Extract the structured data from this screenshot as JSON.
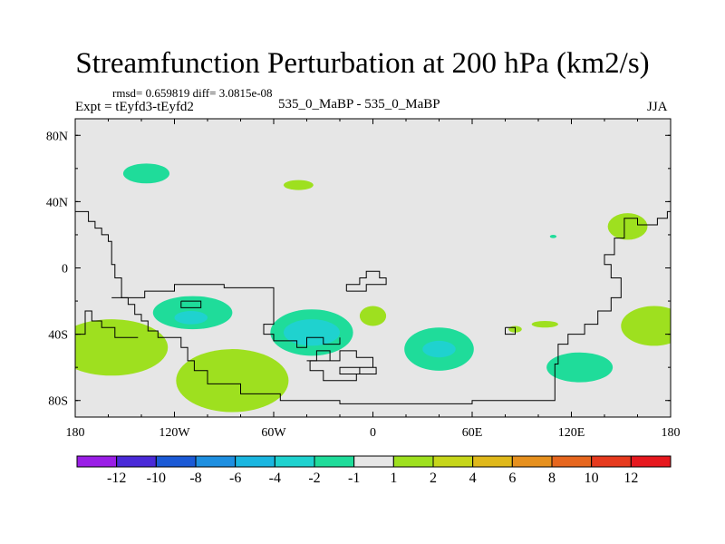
{
  "header": {
    "title": "Streamfunction Perturbation at 200 hPa (km2/s)",
    "stats": "rmsd= 0.659819 diff= 3.0815e-08",
    "experiment": "Expt = tEyfd3-tEyfd2",
    "runs": "535_0_MaBP - 535_0_MaBP",
    "season": "JJA"
  },
  "chart_data": {
    "type": "heatmap",
    "subtype": "filled-contour-map",
    "title": "Streamfunction Perturbation at 200 hPa (km2/s)",
    "units": "km2/s",
    "level": "200 hPa",
    "season": "JJA",
    "xlim": [
      -180,
      180
    ],
    "ylim": [
      -90,
      90
    ],
    "x_ticks": [
      -180,
      -120,
      -60,
      0,
      60,
      120,
      180
    ],
    "x_tick_labels": [
      "180",
      "120W",
      "60W",
      "0",
      "60E",
      "120E",
      "180"
    ],
    "y_ticks": [
      80,
      40,
      0,
      -40,
      -80
    ],
    "y_tick_labels": [
      "80N",
      "40N",
      "0",
      "40S",
      "80S"
    ],
    "colorbar": {
      "labels": [
        "-12",
        "-10",
        "-8",
        "-6",
        "-4",
        "-2",
        "-1",
        "1",
        "2",
        "4",
        "6",
        "8",
        "10",
        "12"
      ],
      "colors": [
        "#9a1ee6",
        "#4a2ad8",
        "#1b5ad6",
        "#1e8fe0",
        "#1ab6e0",
        "#1fd2cf",
        "#1fdc9a",
        "#e6e6e6",
        "#9ee01f",
        "#c6d61a",
        "#dfb81a",
        "#e6901e",
        "#e6661e",
        "#e63a1e",
        "#e6181e"
      ]
    },
    "background_color": "#e6e6e6",
    "features": [
      {
        "lon": -137,
        "lat": 57,
        "rx": 14,
        "ry": 6,
        "category": "-1"
      },
      {
        "lon": -45,
        "lat": 50,
        "rx": 9,
        "ry": 3,
        "category": "1"
      },
      {
        "lon": 154,
        "lat": 25,
        "rx": 12,
        "ry": 8,
        "category": "1"
      },
      {
        "lon": 109,
        "lat": 19,
        "rx": 2,
        "ry": 1,
        "category": "-1"
      },
      {
        "lon": -158,
        "lat": -48,
        "rx": 34,
        "ry": 17,
        "category": "1"
      },
      {
        "lon": -109,
        "lat": -27,
        "rx": 24,
        "ry": 10,
        "category": "-1"
      },
      {
        "lon": -110,
        "lat": -30,
        "rx": 10,
        "ry": 4,
        "category": "-2"
      },
      {
        "lon": -37,
        "lat": -39,
        "rx": 25,
        "ry": 14,
        "category": "-1"
      },
      {
        "lon": -37,
        "lat": -39,
        "rx": 17,
        "ry": 8,
        "category": "-2"
      },
      {
        "lon": 0,
        "lat": -29,
        "rx": 8,
        "ry": 6,
        "category": "1"
      },
      {
        "lon": 40,
        "lat": -49,
        "rx": 21,
        "ry": 13,
        "category": "-1"
      },
      {
        "lon": 40,
        "lat": -49,
        "rx": 10,
        "ry": 5,
        "category": "-2"
      },
      {
        "lon": -85,
        "lat": -68,
        "rx": 34,
        "ry": 19,
        "category": "1"
      },
      {
        "lon": 86,
        "lat": -37,
        "rx": 4,
        "ry": 2,
        "category": "1"
      },
      {
        "lon": 104,
        "lat": -34,
        "rx": 8,
        "ry": 2,
        "category": "1"
      },
      {
        "lon": 125,
        "lat": -60,
        "rx": 20,
        "ry": 9,
        "category": "-1"
      },
      {
        "lon": 170,
        "lat": -35,
        "rx": 20,
        "ry": 12,
        "category": "1"
      }
    ],
    "coastline": [
      [
        [
          -180,
          34
        ],
        [
          -172,
          34
        ],
        [
          -172,
          28
        ],
        [
          -168,
          28
        ],
        [
          -168,
          24
        ],
        [
          -164,
          24
        ],
        [
          -164,
          20
        ],
        [
          -160,
          20
        ],
        [
          -160,
          16
        ],
        [
          -158,
          16
        ],
        [
          -158,
          2
        ],
        [
          -156,
          2
        ],
        [
          -156,
          -6
        ],
        [
          -152,
          -6
        ],
        [
          -152,
          -18
        ],
        [
          -148,
          -18
        ],
        [
          -148,
          -22
        ],
        [
          -144,
          -22
        ],
        [
          -144,
          -28
        ],
        [
          -140,
          -28
        ],
        [
          -140,
          -32
        ],
        [
          -136,
          -32
        ],
        [
          -136,
          -38
        ],
        [
          -130,
          -38
        ],
        [
          -130,
          -42
        ],
        [
          -116,
          -42
        ],
        [
          -116,
          -48
        ],
        [
          -112,
          -48
        ],
        [
          -112,
          -56
        ],
        [
          -108,
          -56
        ],
        [
          -108,
          -62
        ],
        [
          -100,
          -62
        ],
        [
          -100,
          -70
        ],
        [
          -80,
          -70
        ],
        [
          -80,
          -76
        ],
        [
          -56,
          -76
        ],
        [
          -56,
          -80
        ],
        [
          -20,
          -80
        ],
        [
          -20,
          -82
        ],
        [
          60,
          -82
        ],
        [
          60,
          -80
        ],
        [
          110,
          -80
        ],
        [
          110,
          -58
        ],
        [
          112,
          -58
        ],
        [
          112,
          -46
        ],
        [
          118,
          -46
        ],
        [
          118,
          -40
        ],
        [
          128,
          -40
        ],
        [
          128,
          -34
        ],
        [
          136,
          -34
        ],
        [
          136,
          -26
        ],
        [
          144,
          -26
        ],
        [
          144,
          -18
        ],
        [
          150,
          -18
        ],
        [
          150,
          -6
        ],
        [
          144,
          -6
        ],
        [
          144,
          2
        ],
        [
          140,
          2
        ],
        [
          140,
          8
        ],
        [
          146,
          8
        ],
        [
          146,
          18
        ],
        [
          152,
          18
        ],
        [
          152,
          30
        ],
        [
          160,
          30
        ],
        [
          160,
          26
        ],
        [
          172,
          26
        ],
        [
          172,
          30
        ],
        [
          178,
          30
        ],
        [
          178,
          34
        ],
        [
          180,
          34
        ]
      ],
      [
        [
          -180,
          -40
        ],
        [
          -174,
          -40
        ],
        [
          -174,
          -26
        ],
        [
          -170,
          -26
        ],
        [
          -170,
          -32
        ],
        [
          -164,
          -32
        ],
        [
          -164,
          -36
        ],
        [
          -156,
          -36
        ],
        [
          -156,
          -42
        ],
        [
          -142,
          -42
        ]
      ],
      [
        [
          -158,
          -18
        ],
        [
          -138,
          -18
        ],
        [
          -138,
          -14
        ],
        [
          -120,
          -14
        ],
        [
          -120,
          -10
        ],
        [
          -90,
          -10
        ],
        [
          -90,
          -12
        ],
        [
          -60,
          -12
        ],
        [
          -60,
          -34
        ],
        [
          -66,
          -34
        ],
        [
          -66,
          -40
        ],
        [
          -60,
          -40
        ],
        [
          -60,
          -44
        ],
        [
          -46,
          -44
        ],
        [
          -46,
          -48
        ],
        [
          -40,
          -48
        ],
        [
          -40,
          -42
        ],
        [
          -30,
          -42
        ],
        [
          -30,
          -46
        ],
        [
          -20,
          -46
        ],
        [
          -20,
          -42
        ]
      ],
      [
        [
          -16,
          -14
        ],
        [
          -16,
          -10
        ],
        [
          -8,
          -10
        ],
        [
          -8,
          -6
        ],
        [
          -4,
          -6
        ],
        [
          -4,
          -2
        ],
        [
          4,
          -2
        ],
        [
          4,
          -6
        ],
        [
          8,
          -6
        ],
        [
          8,
          -10
        ],
        [
          -4,
          -10
        ],
        [
          -4,
          -14
        ],
        [
          -16,
          -14
        ]
      ],
      [
        [
          -38,
          -56
        ],
        [
          -20,
          -56
        ],
        [
          -20,
          -50
        ],
        [
          -10,
          -50
        ],
        [
          -10,
          -54
        ],
        [
          0,
          -54
        ],
        [
          0,
          -60
        ],
        [
          -20,
          -60
        ],
        [
          -20,
          -64
        ],
        [
          -8,
          -64
        ],
        [
          -8,
          -60
        ],
        [
          2,
          -60
        ],
        [
          2,
          -64
        ],
        [
          -10,
          -64
        ],
        [
          -10,
          -68
        ],
        [
          -30,
          -68
        ],
        [
          -30,
          -62
        ],
        [
          -38,
          -62
        ],
        [
          -38,
          -56
        ]
      ],
      [
        [
          -40,
          -56
        ],
        [
          -34,
          -56
        ],
        [
          -34,
          -50
        ],
        [
          -26,
          -50
        ],
        [
          -26,
          -56
        ]
      ],
      [
        [
          80,
          -36
        ],
        [
          86,
          -36
        ],
        [
          86,
          -40
        ],
        [
          80,
          -40
        ],
        [
          80,
          -36
        ]
      ],
      [
        [
          -116,
          -20
        ],
        [
          -104,
          -20
        ],
        [
          -104,
          -24
        ],
        [
          -116,
          -24
        ],
        [
          -116,
          -20
        ]
      ]
    ]
  }
}
